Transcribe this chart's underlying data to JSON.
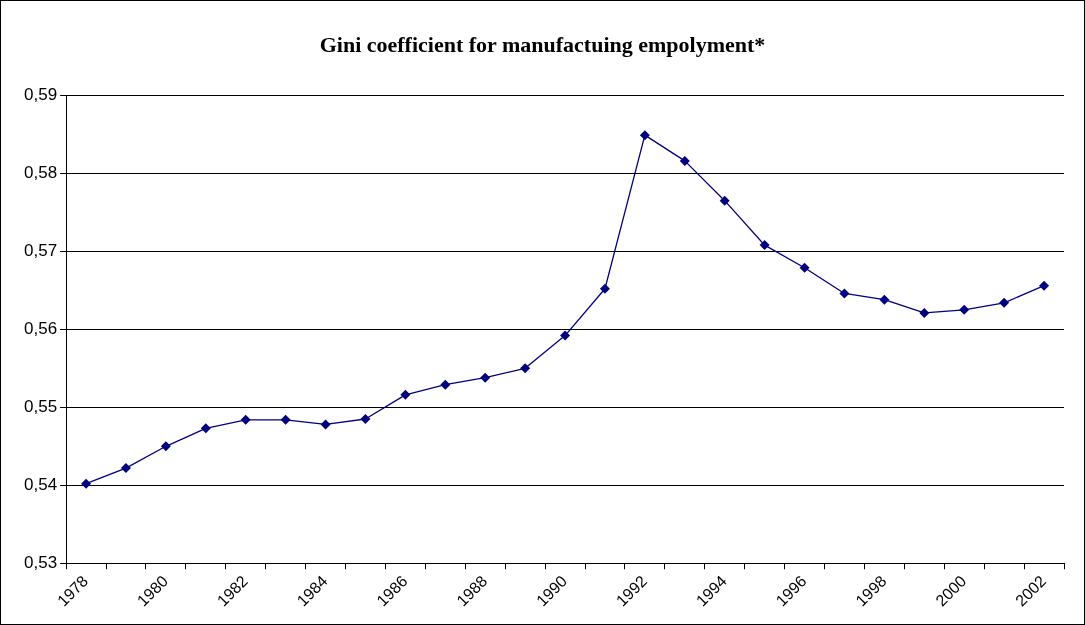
{
  "chart_data": {
    "type": "line",
    "title": "Gini coefficient for manufactuing empolyment*",
    "categories": [
      "1978",
      null,
      "1980",
      null,
      "1982",
      null,
      "1984",
      null,
      "1986",
      null,
      "1988",
      null,
      "1990",
      null,
      "1992",
      null,
      "1994",
      null,
      "1996",
      null,
      "1998",
      null,
      "2000",
      null,
      "2002"
    ],
    "series": [
      {
        "color": "#000080",
        "values": [
          0.5402,
          0.5422,
          0.545,
          0.5473,
          0.5484,
          0.5484,
          0.5478,
          0.5485,
          0.5516,
          0.5529,
          0.5538,
          0.555,
          0.5592,
          0.5652,
          0.5849,
          0.5816,
          0.5765,
          0.5708,
          0.5679,
          0.5646,
          0.5638,
          0.5621,
          0.5625,
          0.5634,
          0.5656
        ]
      }
    ],
    "ylim": [
      0.53,
      0.59
    ],
    "yticks": [
      {
        "value": 0.53,
        "label": "0,53"
      },
      {
        "value": 0.54,
        "label": "0,54"
      },
      {
        "value": 0.55,
        "label": "0,55"
      },
      {
        "value": 0.56,
        "label": "0,56"
      },
      {
        "value": 0.57,
        "label": "0,57"
      },
      {
        "value": 0.58,
        "label": "0,58"
      },
      {
        "value": 0.59,
        "label": "0,59"
      }
    ],
    "grid": "y",
    "legend": false,
    "marker": "diamond",
    "line_style": "solid"
  }
}
